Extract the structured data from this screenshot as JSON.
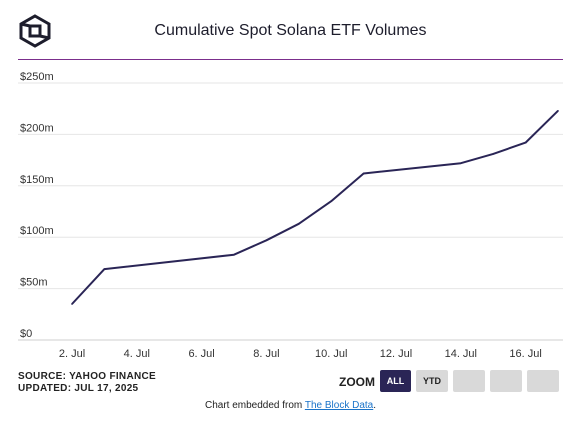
{
  "title": "Cumulative Spot Solana ETF Volumes",
  "source_line": "SOURCE: YAHOO FINANCE",
  "updated_line": "UPDATED: JUL 17, 2025",
  "zoom": {
    "label": "ZOOM",
    "buttons": [
      {
        "label": "ALL",
        "active": true
      },
      {
        "label": "YTD",
        "active": false
      },
      {
        "label": "",
        "active": false
      },
      {
        "label": "",
        "active": false
      },
      {
        "label": "",
        "active": false
      }
    ]
  },
  "embed": {
    "prefix": "Chart embedded from ",
    "link_text": "The Block Data",
    "suffix": "."
  },
  "colors": {
    "line": "#2a2556",
    "accent_rule": "#7b2e8c",
    "grid": "#e6e6e6"
  },
  "chart_data": {
    "type": "line",
    "title": "Cumulative Spot Solana ETF Volumes",
    "xlabel": "",
    "ylabel": "",
    "x_ticks": [
      "2. Jul",
      "4. Jul",
      "6. Jul",
      "8. Jul",
      "10. Jul",
      "12. Jul",
      "14. Jul",
      "16. Jul"
    ],
    "y_ticks": [
      "$0",
      "$50m",
      "$100m",
      "$150m",
      "$200m",
      "$250m"
    ],
    "ylim": [
      0,
      250
    ],
    "xlim": [
      "2025-07-02",
      "2025-07-17"
    ],
    "grid": true,
    "legend": "none",
    "series": [
      {
        "x": [
          "2025-07-02",
          "2025-07-03",
          "2025-07-07",
          "2025-07-08",
          "2025-07-09",
          "2025-07-10",
          "2025-07-11",
          "2025-07-14",
          "2025-07-15",
          "2025-07-16",
          "2025-07-17"
        ],
        "values": [
          35,
          69,
          83,
          97,
          113,
          135,
          162,
          172,
          181,
          192,
          223
        ]
      }
    ]
  }
}
